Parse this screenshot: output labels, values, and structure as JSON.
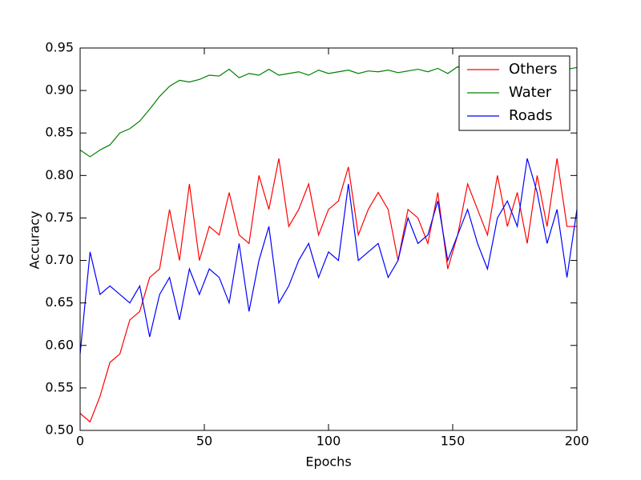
{
  "chart_data": {
    "type": "line",
    "xlabel": "Epochs",
    "ylabel": "Accuracy",
    "x": [
      0,
      4,
      8,
      12,
      16,
      20,
      24,
      28,
      32,
      36,
      40,
      44,
      48,
      52,
      56,
      60,
      64,
      68,
      72,
      76,
      80,
      84,
      88,
      92,
      96,
      100,
      104,
      108,
      112,
      116,
      120,
      124,
      128,
      132,
      136,
      140,
      144,
      148,
      152,
      156,
      160,
      164,
      168,
      172,
      176,
      180,
      184,
      188,
      192,
      196,
      200
    ],
    "series": [
      {
        "name": "Others",
        "color": "#ff0000",
        "values": [
          0.52,
          0.51,
          0.54,
          0.58,
          0.59,
          0.63,
          0.64,
          0.68,
          0.69,
          0.76,
          0.7,
          0.79,
          0.7,
          0.74,
          0.73,
          0.78,
          0.73,
          0.72,
          0.8,
          0.76,
          0.82,
          0.74,
          0.76,
          0.79,
          0.73,
          0.76,
          0.77,
          0.81,
          0.73,
          0.76,
          0.78,
          0.76,
          0.7,
          0.76,
          0.75,
          0.72,
          0.78,
          0.69,
          0.73,
          0.79,
          0.76,
          0.73,
          0.8,
          0.74,
          0.78,
          0.72,
          0.8,
          0.74,
          0.82,
          0.74,
          0.74
        ]
      },
      {
        "name": "Water",
        "color": "#008000",
        "values": [
          0.83,
          0.822,
          0.83,
          0.836,
          0.85,
          0.855,
          0.864,
          0.878,
          0.893,
          0.905,
          0.912,
          0.91,
          0.913,
          0.918,
          0.917,
          0.925,
          0.915,
          0.92,
          0.918,
          0.925,
          0.918,
          0.92,
          0.922,
          0.918,
          0.924,
          0.92,
          0.922,
          0.924,
          0.92,
          0.923,
          0.922,
          0.924,
          0.921,
          0.923,
          0.925,
          0.922,
          0.926,
          0.92,
          0.928,
          0.922,
          0.925,
          0.924,
          0.926,
          0.923,
          0.925,
          0.924,
          0.926,
          0.925,
          0.928,
          0.925,
          0.927
        ]
      },
      {
        "name": "Roads",
        "color": "#0000ff",
        "values": [
          0.59,
          0.71,
          0.66,
          0.67,
          0.66,
          0.65,
          0.67,
          0.61,
          0.66,
          0.68,
          0.63,
          0.69,
          0.66,
          0.69,
          0.68,
          0.65,
          0.72,
          0.64,
          0.7,
          0.74,
          0.65,
          0.67,
          0.7,
          0.72,
          0.68,
          0.71,
          0.7,
          0.79,
          0.7,
          0.71,
          0.72,
          0.68,
          0.7,
          0.75,
          0.72,
          0.73,
          0.77,
          0.7,
          0.73,
          0.76,
          0.72,
          0.69,
          0.75,
          0.77,
          0.74,
          0.82,
          0.78,
          0.72,
          0.76,
          0.68,
          0.76
        ]
      }
    ],
    "xlim": [
      0,
      200
    ],
    "xticks": [
      0,
      50,
      100,
      150,
      200
    ],
    "ylim": [
      0.5,
      0.95
    ],
    "yticks": [
      {
        "value": 0.5,
        "label": "0.50"
      },
      0.55,
      {
        "value": 0.6,
        "label": "0.60"
      },
      0.65,
      {
        "value": 0.7,
        "label": "0.70"
      },
      0.75,
      {
        "value": 0.8,
        "label": "0.80"
      },
      0.85,
      {
        "value": 0.9,
        "label": "0.90"
      },
      0.95
    ],
    "legend": "upper right"
  }
}
